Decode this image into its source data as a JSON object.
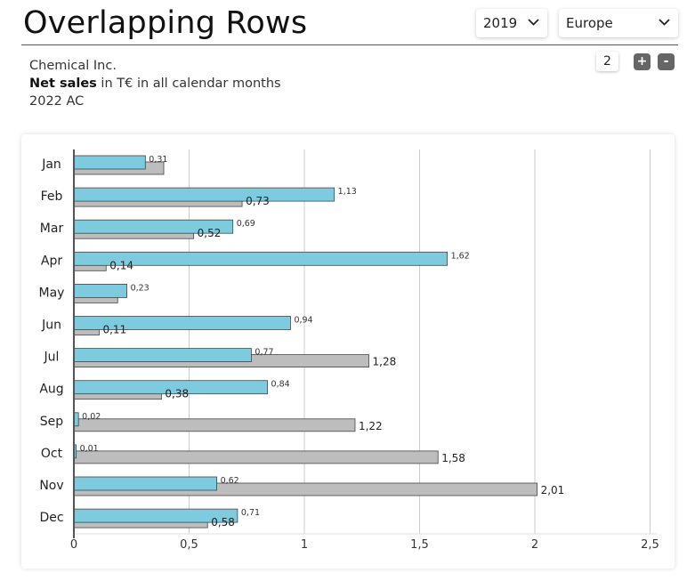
{
  "header": {
    "title": "Overlapping Rows",
    "year_select": {
      "value": "2019"
    },
    "region_select": {
      "value": "Europe"
    }
  },
  "info": {
    "company": "Chemical Inc.",
    "measure_bold": "Net sales",
    "measure_rest": " in T€ in all calendar months",
    "scenario": "2022 AC"
  },
  "controls": {
    "count": "2",
    "plus_label": "+",
    "minus_label": "-"
  },
  "colors": {
    "series_ac": "#7ecbdf",
    "series_py": "#bdbdbd",
    "stroke": "#444444",
    "grid": "#cccccc"
  },
  "chart_data": {
    "type": "bar",
    "orientation": "horizontal",
    "title": "",
    "xlabel": "",
    "ylabel": "",
    "categories": [
      "Jan",
      "Feb",
      "Mar",
      "Apr",
      "May",
      "Jun",
      "Jul",
      "Aug",
      "Sep",
      "Oct",
      "Nov",
      "Dec"
    ],
    "xlim": [
      0,
      2.5
    ],
    "x_ticks": [
      0,
      0.5,
      1,
      1.5,
      2,
      2.5
    ],
    "x_tick_labels": [
      "0",
      "0,5",
      "1",
      "1,5",
      "2",
      "2,5"
    ],
    "grid": true,
    "series": [
      {
        "values": [
          0.31,
          1.13,
          0.69,
          1.62,
          0.23,
          0.94,
          0.77,
          0.84,
          0.02,
          0.01,
          0.62,
          0.71
        ],
        "labels": [
          "0,31",
          "1,13",
          "0,69",
          "1,62",
          "0,23",
          "0,94",
          "0,77",
          "0,84",
          "0,02",
          "0,01",
          "0,62",
          "0,71"
        ]
      },
      {
        "values": [
          0.39,
          0.73,
          0.52,
          0.14,
          0.19,
          0.11,
          1.28,
          0.38,
          1.22,
          1.58,
          2.01,
          0.58
        ],
        "labels": [
          "",
          "0,73",
          "0,52",
          "0,14",
          "",
          "0,11",
          "1,28",
          "0,38",
          "1,22",
          "1,58",
          "2,01",
          "0,58"
        ]
      }
    ]
  }
}
